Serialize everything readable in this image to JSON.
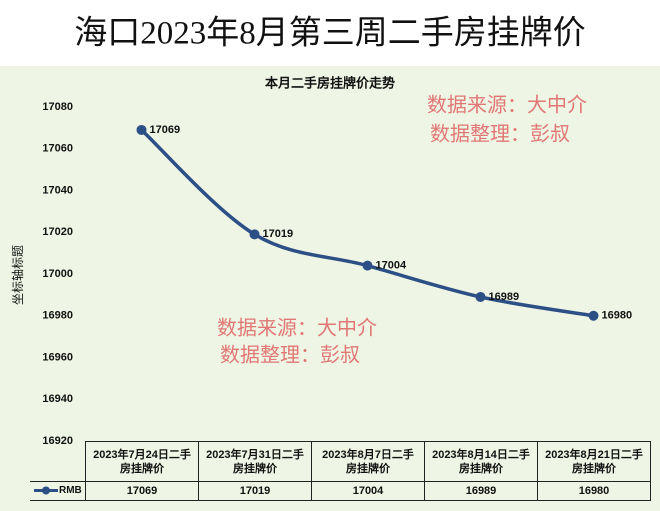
{
  "chart_data": {
    "type": "line",
    "title": "海口2023年8月第三周二手房挂牌价",
    "subtitle": "本月二手房挂牌价走势",
    "y_label": "坐标轴标题",
    "categories": [
      "2023年7月24日二手房挂牌价",
      "2023年7月31日二手房挂牌价",
      "2023年8月7日二手房挂牌价",
      "2023年8月14日二手房挂牌价",
      "2023年8月21日二手房挂牌价"
    ],
    "series": [
      {
        "name": "RMB",
        "color": "#2c4f86",
        "values": [
          17069,
          17019,
          17004,
          16989,
          16980
        ]
      }
    ],
    "ylim": [
      16920,
      17080
    ],
    "yticks": [
      16920,
      16940,
      16960,
      16980,
      17000,
      17020,
      17040,
      17060,
      17080
    ],
    "grid": false,
    "annotations": [
      "数据来源：大中介",
      "数据整理：彭叔",
      "数据来源：大中介",
      "数据整理：彭叔"
    ]
  }
}
